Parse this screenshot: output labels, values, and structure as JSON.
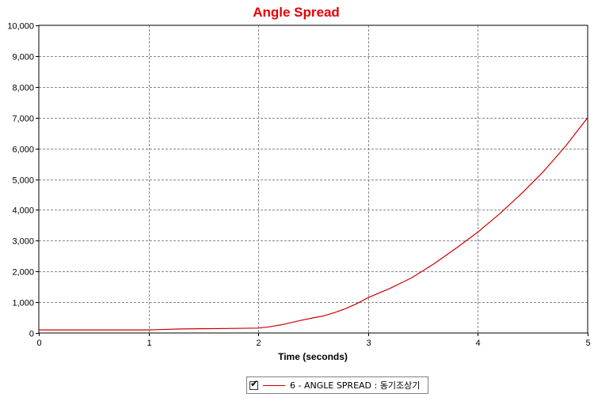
{
  "chart_data": {
    "type": "line",
    "title": "Angle Spread",
    "xlabel": "Time (seconds)",
    "ylabel": "",
    "xlim": [
      0,
      5
    ],
    "ylim": [
      0,
      10000
    ],
    "x_ticks": [
      "0",
      "1",
      "2",
      "3",
      "4",
      "5"
    ],
    "y_ticks": [
      "0",
      "1,000",
      "2,000",
      "3,000",
      "4,000",
      "5,000",
      "6,000",
      "7,000",
      "8,000",
      "9,000",
      "10,000"
    ],
    "grid": true,
    "legend_position": "bottom-center",
    "series": [
      {
        "name": "6 - ANGLE SPREAD : 동기조상기",
        "color": "#cc0000",
        "x": [
          0,
          0.5,
          1.0,
          1.1,
          1.3,
          1.5,
          1.8,
          2.0,
          2.1,
          2.2,
          2.3,
          2.4,
          2.5,
          2.6,
          2.7,
          2.8,
          2.9,
          3.0,
          3.2,
          3.4,
          3.6,
          3.8,
          4.0,
          4.2,
          4.4,
          4.6,
          4.8,
          5.0
        ],
        "y": [
          100,
          100,
          100,
          110,
          130,
          140,
          150,
          160,
          200,
          260,
          340,
          420,
          490,
          560,
          670,
          800,
          960,
          1150,
          1450,
          1800,
          2250,
          2750,
          3280,
          3880,
          4540,
          5260,
          6080,
          7000
        ]
      }
    ]
  },
  "legend": {
    "checked": true,
    "check_mark": "✔",
    "label": "6 - ANGLE SPREAD : 동기조상기"
  }
}
